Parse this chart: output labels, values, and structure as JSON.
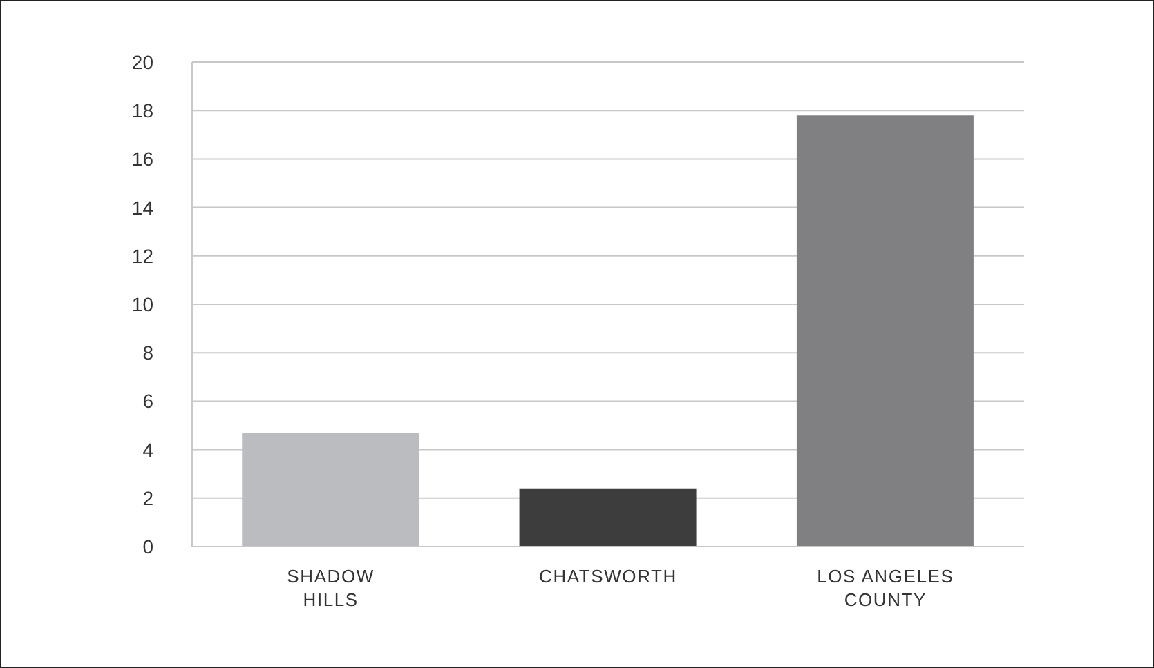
{
  "chart_data": {
    "type": "bar",
    "categories": [
      "SHADOW\nHILLS",
      "CHATSWORTH",
      "LOS ANGELES\nCOUNTY"
    ],
    "values": [
      4.7,
      2.4,
      17.8
    ],
    "colors": [
      "#bbbcbf",
      "#3d3d3d",
      "#808083"
    ],
    "ylim": [
      0,
      20
    ],
    "yticks": [
      0,
      2,
      4,
      6,
      8,
      10,
      12,
      14,
      16,
      18,
      20
    ],
    "grid": "y",
    "legend": false
  }
}
